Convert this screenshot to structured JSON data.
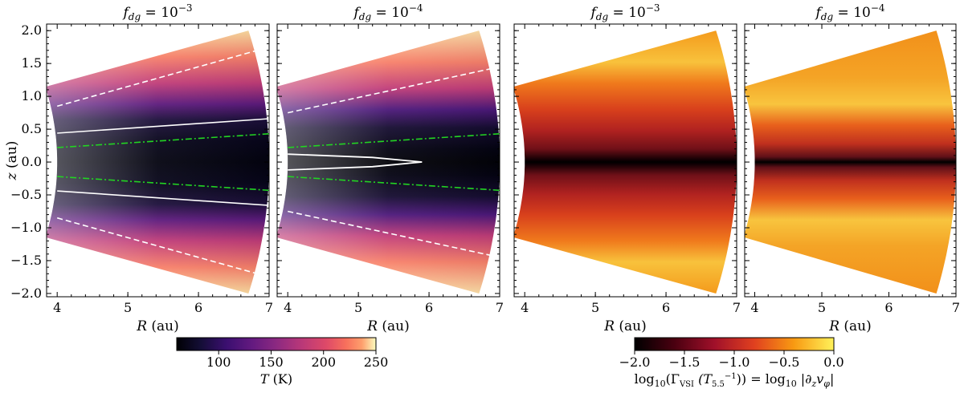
{
  "chart_data": [
    {
      "type": "heatmap",
      "title": "f_dg = 10^-3",
      "title_main": "f",
      "title_sub": "dg",
      "title_eq": " = 10",
      "title_exp": "−3",
      "quantity": "T",
      "xlabel": "R (au)",
      "ylabel": "z (au)",
      "xlim": [
        3.85,
        7.0
      ],
      "ylim": [
        -2.05,
        2.1
      ],
      "domain": {
        "r_in": 4.0,
        "r_out": 7.0,
        "theta_max": 0.29,
        "fan": true
      },
      "contours": [
        {
          "style": "dashed",
          "color": "#ffffff",
          "points": [
            [
              4.0,
              0.85
            ],
            [
              7.0,
              1.75
            ]
          ],
          "mirror": true
        },
        {
          "style": "solid",
          "color": "#ffffff",
          "points": [
            [
              4.0,
              0.44
            ],
            [
              7.0,
              0.66
            ]
          ],
          "mirror": true
        },
        {
          "style": "dashdot",
          "color": "#22d422",
          "points": [
            [
              4.0,
              0.22
            ],
            [
              7.0,
              0.43
            ]
          ],
          "mirror": true
        }
      ]
    },
    {
      "type": "heatmap",
      "title": "f_dg = 10^-4",
      "title_main": "f",
      "title_sub": "dg",
      "title_eq": " = 10",
      "title_exp": "−4",
      "quantity": "T",
      "xlabel": "R (au)",
      "xlim": [
        3.85,
        7.0
      ],
      "ylim": [
        -2.05,
        2.1
      ],
      "domain": {
        "r_in": 4.0,
        "r_out": 7.0,
        "theta_max": 0.29,
        "fan": true
      },
      "contours": [
        {
          "style": "dashed",
          "color": "#ffffff",
          "points": [
            [
              4.0,
              0.75
            ],
            [
              7.0,
              1.45
            ]
          ],
          "mirror": true
        },
        {
          "style": "solid-closed",
          "color": "#ffffff",
          "points": [
            [
              4.0,
              0.12
            ],
            [
              5.2,
              0.07
            ],
            [
              5.9,
              0.0
            ]
          ],
          "mirror": true
        },
        {
          "style": "dashdot",
          "color": "#22d422",
          "points": [
            [
              4.0,
              0.22
            ],
            [
              7.0,
              0.43
            ]
          ],
          "mirror": true
        }
      ]
    },
    {
      "type": "heatmap",
      "title": "f_dg = 10^-3",
      "title_main": "f",
      "title_sub": "dg",
      "title_eq": " = 10",
      "title_exp": "−3",
      "quantity": "log10 |dz v_phi|",
      "xlabel": "R (au)",
      "xlim": [
        3.85,
        7.0
      ],
      "ylim": [
        -2.05,
        2.1
      ],
      "domain": {
        "r_in": 4.0,
        "r_out": 7.0,
        "theta_max": 0.29,
        "fan": true
      }
    },
    {
      "type": "heatmap",
      "title": "f_dg = 10^-4",
      "title_main": "f",
      "title_sub": "dg",
      "title_eq": " = 10",
      "title_exp": "−4",
      "quantity": "log10 |dz v_phi|",
      "xlabel": "R (au)",
      "xlim": [
        3.85,
        7.0
      ],
      "ylim": [
        -2.05,
        2.1
      ],
      "domain": {
        "r_in": 4.0,
        "r_out": 7.0,
        "theta_max": 0.29,
        "fan": true
      }
    }
  ],
  "axes": {
    "xticks": [
      4,
      5,
      6,
      7
    ],
    "yticks": [
      -2.0,
      -1.5,
      -1.0,
      -0.5,
      0.0,
      0.5,
      1.0,
      1.5,
      2.0
    ],
    "ytick_labels": [
      "−2.0",
      "−1.5",
      "−1.0",
      "−0.5",
      "0.0",
      "0.5",
      "1.0",
      "1.5",
      "2.0"
    ],
    "xlabel_main": "R",
    "xlabel_unit": " (au)",
    "ylabel_main": "z",
    "ylabel_unit": " (au)"
  },
  "colorbars": [
    {
      "colormap": "magma",
      "range": [
        60,
        250
      ],
      "ticks": [
        100,
        150,
        200,
        250
      ],
      "tick_labels": [
        "100",
        "150",
        "200",
        "250"
      ],
      "label_main": "T",
      "label_unit": " (K)"
    },
    {
      "colormap": "afmhot",
      "range": [
        -2.0,
        0.0
      ],
      "ticks": [
        -2.0,
        -1.5,
        -1.0,
        -0.5,
        0.0
      ],
      "tick_labels": [
        "−2.0",
        "−1.5",
        "−1.0",
        "−0.5",
        "0.0"
      ],
      "label": "log10(Γ_VSI (T_5.5^-1)) = log10 |∂z v_φ|",
      "label_parts": {
        "log": "log",
        "log_sub": "10",
        "gamma": "(Γ",
        "gamma_sub": "VSI",
        "paren": " (T",
        "t_sub": "5.5",
        "t_sup": "−1",
        "close": ")) = log",
        "log2_sub": "10",
        "abs": " |∂",
        "dz_sub": "z",
        "v": "v",
        "v_sub": "φ",
        "end": "|"
      }
    }
  ]
}
